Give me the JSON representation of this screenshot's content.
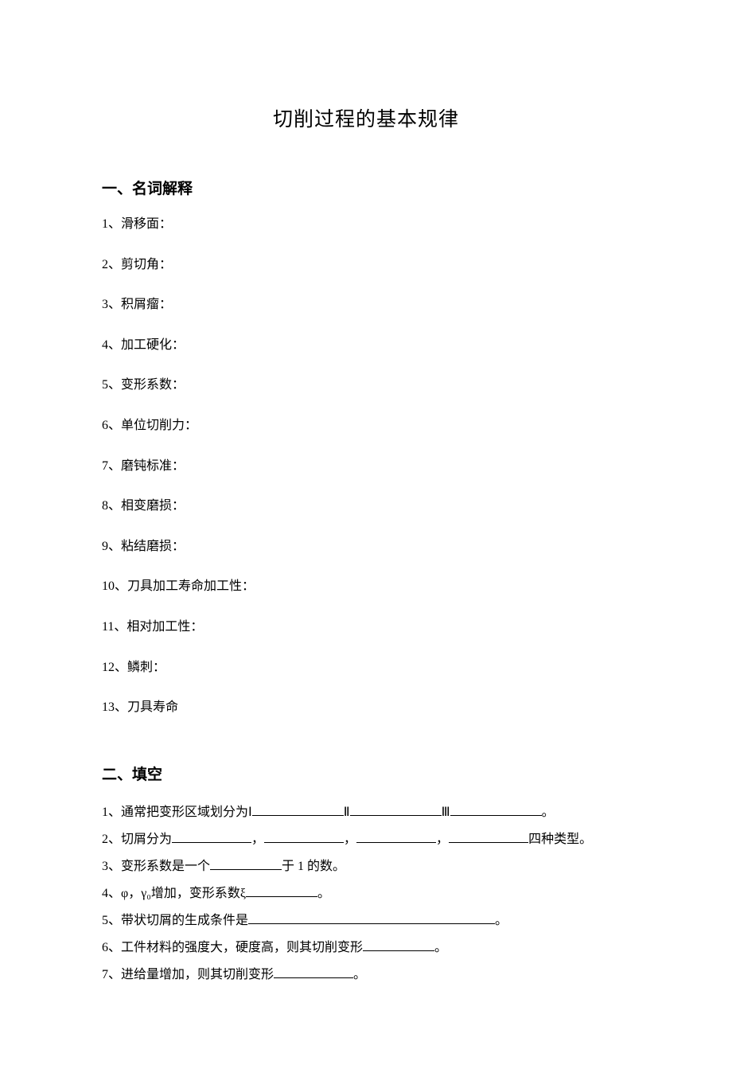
{
  "title": "切削过程的基本规律",
  "section1": {
    "heading": "一、名词解释",
    "items": [
      "1、滑移面：",
      "2、剪切角：",
      "3、积屑瘤：",
      "4、加工硬化：",
      "5、变形系数：",
      "6、单位切削力：",
      "7、磨钝标准：",
      "8、相变磨损：",
      "9、粘结磨损：",
      "10、刀具加工寿命加工性：",
      "11、相对加工性：",
      "12、鳞刺：",
      "13、刀具寿命"
    ]
  },
  "section2": {
    "heading": "二、填空",
    "q1": {
      "pre": "1、通常把变形区域划分为Ⅰ",
      "mid1": "Ⅱ",
      "mid2": "Ⅲ",
      "end": "。"
    },
    "q2": {
      "pre": "2、切屑分为",
      "sep": "，",
      "end": "四种类型。"
    },
    "q3": {
      "pre": "3、变形系数是一个",
      "post": "于 1 的数。"
    },
    "q4": {
      "pre": "4、φ，γ₀增加，变形系数ξ",
      "end": "。"
    },
    "q5": {
      "pre": "5、带状切屑的生成条件是",
      "end": "。"
    },
    "q6": {
      "pre": "6、工件材料的强度大，硬度高，则其切削变形",
      "end": "。"
    },
    "q7": {
      "pre": "7、进给量增加，则其切削变形",
      "end": "。"
    }
  },
  "colors": {
    "text": "#000000",
    "background": "#ffffff"
  },
  "fontsize": {
    "title": 25,
    "heading": 19,
    "body": 16
  }
}
